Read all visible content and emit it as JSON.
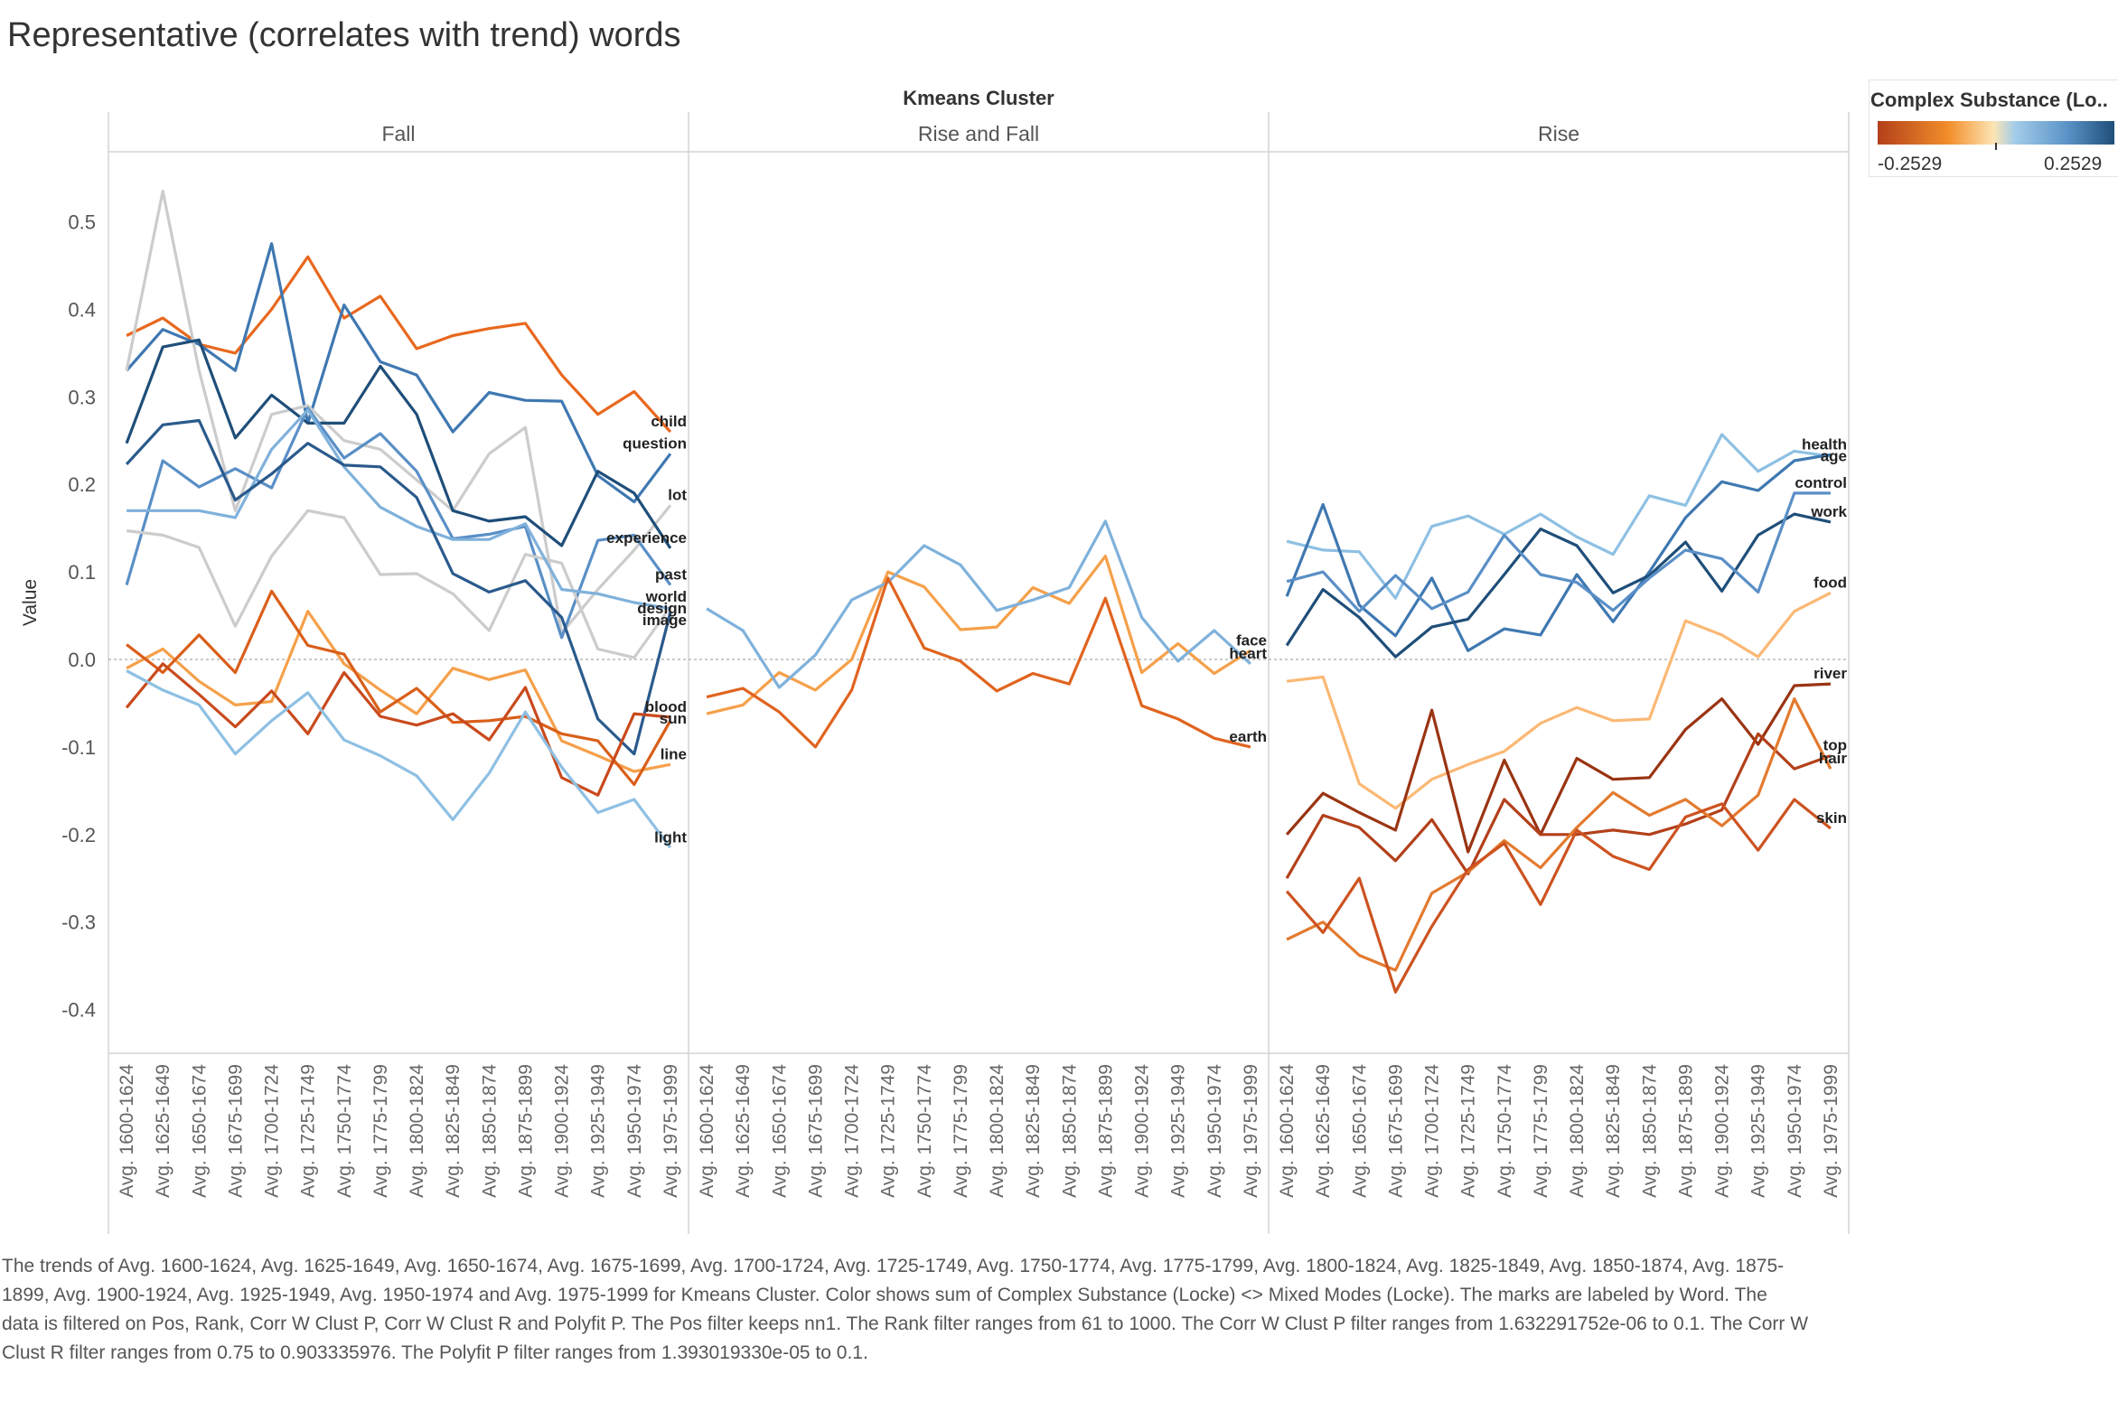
{
  "title": "Representative (correlates with trend) words",
  "caption": "The trends of Avg. 1600-1624, Avg. 1625-1649, Avg. 1650-1674, Avg. 1675-1699, Avg. 1700-1724, Avg. 1725-1749, Avg. 1750-1774, Avg. 1775-1799, Avg. 1800-1824, Avg. 1825-1849, Avg. 1850-1874, Avg. 1875-1899, Avg. 1900-1924, Avg. 1925-1949, Avg. 1950-1974 and Avg. 1975-1999 for Kmeans Cluster.  Color shows sum of Complex Substance (Locke) <> Mixed Modes (Locke).  The marks are labeled by Word. The data is filtered on Pos, Rank, Corr W Clust P, Corr W Clust R and Polyfit P. The Pos filter keeps nn1. The Rank filter ranges from 61 to 1000. The Corr W Clust P filter ranges from 1.632291752e-06 to 0.1. The Corr W Clust R filter ranges from 0.75 to 0.903335976. The Polyfit P filter ranges from 1.393019330e-05 to 0.1.",
  "legend": {
    "title": "Complex Substance (Lo..",
    "min_label": "-0.2529",
    "max_label": "0.2529",
    "colors": [
      "#b2401a",
      "#f28e2b",
      "#fde5b4",
      "#a3cce9",
      "#5b93c7",
      "#1f4e79"
    ]
  },
  "chart_data": {
    "type": "line",
    "column_header": "Kmeans Cluster",
    "ylabel": "Value",
    "ylim": [
      -0.45,
      0.58
    ],
    "yticks": [
      0.5,
      0.4,
      0.3,
      0.2,
      0.1,
      0.0,
      -0.1,
      -0.2,
      -0.3,
      -0.4
    ],
    "ytick_labels": [
      "0.5",
      "0.4",
      "0.3",
      "0.2",
      "0.1",
      "0.0",
      "-0.1",
      "-0.2",
      "-0.3",
      "-0.4"
    ],
    "categories": [
      "Avg. 1600-1624",
      "Avg. 1625-1649",
      "Avg. 1650-1674",
      "Avg. 1675-1699",
      "Avg. 1700-1724",
      "Avg. 1725-1749",
      "Avg. 1750-1774",
      "Avg. 1775-1799",
      "Avg. 1800-1824",
      "Avg. 1825-1849",
      "Avg. 1850-1874",
      "Avg. 1875-1899",
      "Avg. 1900-1924",
      "Avg. 1925-1949",
      "Avg. 1950-1974",
      "Avg. 1975-1999"
    ],
    "panels": [
      {
        "name": "Fall",
        "series": [
          {
            "name": "child",
            "color": "#e8681e",
            "values": [
              0.37,
              0.39,
              0.36,
              0.35,
              0.4,
              0.46,
              0.39,
              0.415,
              0.355,
              0.37,
              0.378,
              0.384,
              0.325,
              0.28,
              0.306,
              0.26
            ]
          },
          {
            "name": "question",
            "color": "#3f78b1",
            "values": [
              0.33,
              0.377,
              0.36,
              0.33,
              0.475,
              0.27,
              0.405,
              0.34,
              0.325,
              0.26,
              0.305,
              0.296,
              0.295,
              0.21,
              0.18,
              0.235
            ]
          },
          {
            "name": "lot",
            "color": "#cccccc",
            "values": [
              0.33,
              0.535,
              0.33,
              0.17,
              0.28,
              0.29,
              0.25,
              0.24,
              0.205,
              0.17,
              0.235,
              0.265,
              0.03,
              0.08,
              0.125,
              0.176
            ]
          },
          {
            "name": "experience",
            "color": "#1f4e79",
            "values": [
              0.247,
              0.357,
              0.365,
              0.253,
              0.302,
              0.27,
              0.27,
              0.335,
              0.28,
              0.17,
              0.158,
              0.163,
              0.13,
              0.215,
              0.19,
              0.127
            ]
          },
          {
            "name": "past",
            "color": "#5a8fc6",
            "values": [
              0.085,
              0.227,
              0.197,
              0.218,
              0.196,
              0.287,
              0.23,
              0.258,
              0.215,
              0.138,
              0.143,
              0.152,
              0.025,
              0.136,
              0.142,
              0.085
            ]
          },
          {
            "name": "world",
            "color": "#cccccc",
            "values": [
              0.147,
              0.142,
              0.128,
              0.038,
              0.118,
              0.17,
              0.162,
              0.097,
              0.098,
              0.075,
              0.033,
              0.12,
              0.11,
              0.012,
              0.002,
              0.06
            ]
          },
          {
            "name": "design",
            "color": "#7fb1db",
            "values": [
              0.17,
              0.17,
              0.17,
              0.162,
              0.24,
              0.285,
              0.22,
              0.174,
              0.152,
              0.137,
              0.137,
              0.155,
              0.08,
              0.075,
              0.065,
              0.058
            ]
          },
          {
            "name": "image",
            "color": "#2a5a8c",
            "values": [
              0.223,
              0.268,
              0.273,
              0.182,
              0.212,
              0.247,
              0.222,
              0.22,
              0.185,
              0.098,
              0.077,
              0.09,
              0.048,
              -0.068,
              -0.108,
              0.054
            ]
          },
          {
            "name": "line",
            "color": "#f5a04a",
            "values": [
              -0.01,
              0.012,
              -0.025,
              -0.052,
              -0.048,
              0.055,
              -0.005,
              -0.035,
              -0.062,
              -0.01,
              -0.023,
              -0.012,
              -0.093,
              -0.11,
              -0.128,
              -0.12
            ]
          },
          {
            "name": "sun",
            "color": "#d95f1a",
            "values": [
              0.017,
              -0.015,
              0.028,
              -0.015,
              0.078,
              0.016,
              0.006,
              -0.06,
              -0.033,
              -0.072,
              -0.07,
              -0.065,
              -0.085,
              -0.093,
              -0.143,
              -0.07
            ]
          },
          {
            "name": "blood",
            "color": "#c94a1d",
            "values": [
              -0.055,
              -0.005,
              -0.04,
              -0.077,
              -0.036,
              -0.085,
              -0.015,
              -0.065,
              -0.075,
              -0.062,
              -0.092,
              -0.032,
              -0.135,
              -0.155,
              -0.062,
              -0.066
            ]
          },
          {
            "name": "light",
            "color": "#8ec0e3",
            "values": [
              -0.013,
              -0.035,
              -0.052,
              -0.108,
              -0.07,
              -0.038,
              -0.092,
              -0.11,
              -0.133,
              -0.183,
              -0.13,
              -0.06,
              -0.123,
              -0.175,
              -0.16,
              -0.215
            ]
          }
        ]
      },
      {
        "name": "Rise and Fall",
        "series": [
          {
            "name": "face",
            "color": "#f5a04a",
            "values": [
              -0.062,
              -0.052,
              -0.015,
              -0.035,
              0.0,
              0.1,
              0.083,
              0.034,
              0.037,
              0.082,
              0.064,
              0.118,
              -0.015,
              0.018,
              -0.016,
              0.01
            ]
          },
          {
            "name": "heart",
            "color": "#7fb1db",
            "values": [
              0.058,
              0.033,
              -0.032,
              0.005,
              0.068,
              0.088,
              0.13,
              0.108,
              0.056,
              0.068,
              0.082,
              0.158,
              0.048,
              -0.002,
              0.033,
              -0.005
            ]
          },
          {
            "name": "earth",
            "color": "#e0641f",
            "values": [
              -0.043,
              -0.033,
              -0.06,
              -0.1,
              -0.035,
              0.093,
              0.013,
              -0.002,
              -0.036,
              -0.016,
              -0.028,
              0.07,
              -0.053,
              -0.068,
              -0.09,
              -0.1
            ]
          }
        ]
      },
      {
        "name": "Rise",
        "series": [
          {
            "name": "age",
            "color": "#8ec0e3",
            "values": [
              0.135,
              0.125,
              0.123,
              0.07,
              0.152,
              0.164,
              0.143,
              0.166,
              0.14,
              0.12,
              0.187,
              0.176,
              0.257,
              0.215,
              0.238,
              0.232
            ]
          },
          {
            "name": "health",
            "color": "#3f78b1",
            "values": [
              0.072,
              0.177,
              0.062,
              0.027,
              0.093,
              0.01,
              0.035,
              0.028,
              0.097,
              0.043,
              0.1,
              0.162,
              0.203,
              0.193,
              0.227,
              0.234
            ]
          },
          {
            "name": "work",
            "color": "#1f4e79",
            "values": [
              0.016,
              0.08,
              0.048,
              0.003,
              0.037,
              0.046,
              0.097,
              0.149,
              0.13,
              0.076,
              0.096,
              0.134,
              0.078,
              0.142,
              0.166,
              0.157
            ]
          },
          {
            "name": "control",
            "color": "#5a8fc6",
            "values": [
              0.089,
              0.1,
              0.055,
              0.096,
              0.058,
              0.077,
              0.142,
              0.097,
              0.088,
              0.056,
              0.093,
              0.125,
              0.115,
              0.077,
              0.19,
              0.19
            ]
          },
          {
            "name": "food",
            "color": "#fbb874",
            "values": [
              -0.025,
              -0.02,
              -0.142,
              -0.17,
              -0.137,
              -0.12,
              -0.105,
              -0.073,
              -0.055,
              -0.07,
              -0.068,
              0.044,
              0.028,
              0.003,
              0.055,
              0.076
            ]
          },
          {
            "name": "river",
            "color": "#9a3412",
            "values": [
              -0.2,
              -0.153,
              -0.175,
              -0.195,
              -0.058,
              -0.22,
              -0.115,
              -0.2,
              -0.113,
              -0.137,
              -0.135,
              -0.08,
              -0.045,
              -0.097,
              -0.03,
              -0.028
            ]
          },
          {
            "name": "top",
            "color": "#b3401a",
            "values": [
              -0.25,
              -0.178,
              -0.192,
              -0.23,
              -0.183,
              -0.245,
              -0.16,
              -0.2,
              -0.2,
              -0.195,
              -0.2,
              -0.188,
              -0.172,
              -0.085,
              -0.125,
              -0.11
            ]
          },
          {
            "name": "hair",
            "color": "#e37a2f",
            "values": [
              -0.32,
              -0.3,
              -0.338,
              -0.355,
              -0.267,
              -0.243,
              -0.207,
              -0.238,
              -0.192,
              -0.152,
              -0.178,
              -0.16,
              -0.19,
              -0.155,
              -0.045,
              -0.125
            ]
          },
          {
            "name": "skin",
            "color": "#cd5320",
            "values": [
              -0.265,
              -0.312,
              -0.25,
              -0.38,
              -0.305,
              -0.24,
              -0.21,
              -0.28,
              -0.195,
              -0.225,
              -0.24,
              -0.18,
              -0.165,
              -0.218,
              -0.16,
              -0.193
            ]
          }
        ]
      }
    ]
  }
}
